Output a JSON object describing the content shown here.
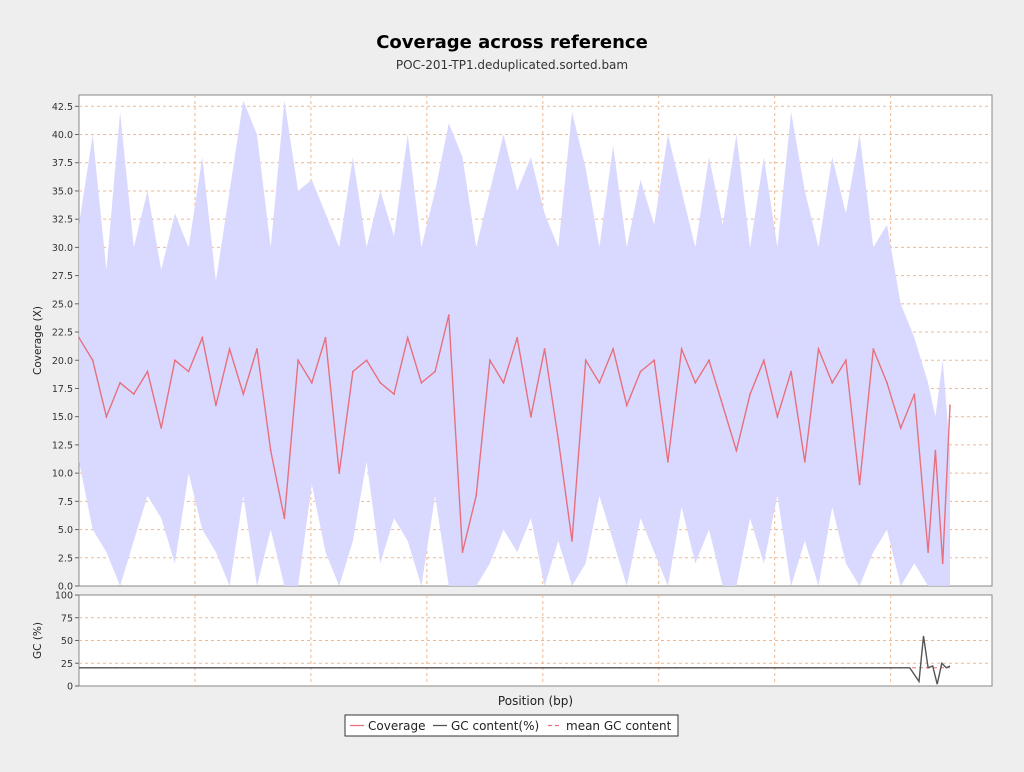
{
  "chart_data": [
    {
      "type": "line",
      "title": "Coverage across reference",
      "subtitle": "POC-201-TP1.deduplicated.sorted.bam",
      "xlabel": "",
      "ylabel": "Coverage (X)",
      "ylim": [
        0,
        43.5
      ],
      "yticks": [
        0.0,
        2.5,
        5.0,
        7.5,
        10.0,
        12.5,
        15.0,
        17.5,
        20.0,
        22.5,
        25.0,
        27.5,
        30.0,
        32.5,
        35.0,
        37.5,
        40.0,
        42.5
      ],
      "ytick_labels": [
        "0.0",
        "2.5",
        "5.0",
        "7.5",
        "10.0",
        "12.5",
        "15.0",
        "17.5",
        "20.0",
        "22.5",
        "25.0",
        "27.5",
        "30.0",
        "32.5",
        "35.0",
        "37.5",
        "40.0",
        "42.5"
      ],
      "xlim": [
        0,
        100
      ],
      "grid": true,
      "band_color": "#d7d7ff",
      "line_color": "#e8707e",
      "series": [
        {
          "name": "Coverage",
          "x": [
            0,
            1.5,
            3,
            4.5,
            6,
            7.5,
            9,
            10.5,
            12,
            13.5,
            15,
            16.5,
            18,
            19.5,
            21,
            22.5,
            24,
            25.5,
            27,
            28.5,
            30,
            31.5,
            33,
            34.5,
            36,
            37.5,
            39,
            40.5,
            42,
            43.5,
            45,
            46.5,
            48,
            49.5,
            51,
            52.5,
            54,
            55.5,
            57,
            58.5,
            60,
            61.5,
            63,
            64.5,
            66,
            67.5,
            69,
            70.5,
            72,
            73.5,
            75,
            76.5,
            78,
            79.5,
            81,
            82.5,
            84,
            85.5,
            87,
            88.5,
            90,
            91.5,
            93,
            93.8,
            94.6,
            95.4
          ],
          "y": [
            22,
            20,
            15,
            18,
            17,
            19,
            14,
            20,
            19,
            22,
            16,
            21,
            17,
            21,
            12,
            6,
            20,
            18,
            22,
            10,
            19,
            20,
            18,
            17,
            22,
            18,
            19,
            24,
            3,
            8,
            20,
            18,
            22,
            15,
            21,
            13,
            4,
            20,
            18,
            21,
            16,
            19,
            20,
            11,
            21,
            18,
            20,
            16,
            12,
            17,
            20,
            15,
            19,
            11,
            21,
            18,
            20,
            9,
            21,
            18,
            14,
            17,
            3,
            12,
            2,
            16
          ],
          "band_upper": [
            32,
            40,
            28,
            42,
            30,
            35,
            28,
            33,
            30,
            38,
            27,
            35,
            43,
            40,
            30,
            43,
            35,
            36,
            33,
            30,
            38,
            30,
            35,
            31,
            40,
            30,
            35,
            41,
            38,
            30,
            35,
            40,
            35,
            38,
            33,
            30,
            42,
            37,
            30,
            39,
            30,
            36,
            32,
            40,
            35,
            30,
            38,
            32,
            40,
            30,
            38,
            30,
            42,
            35,
            30,
            38,
            33,
            40,
            30,
            32,
            25,
            22,
            18,
            15,
            20,
            12
          ],
          "band_lower": [
            11,
            5,
            3,
            0,
            4,
            8,
            6,
            2,
            10,
            5,
            3,
            0,
            8,
            0,
            5,
            0,
            0,
            9,
            3,
            0,
            4,
            11,
            2,
            6,
            4,
            0,
            8,
            0,
            0,
            0,
            2,
            5,
            3,
            6,
            0,
            4,
            0,
            2,
            8,
            4,
            0,
            6,
            3,
            0,
            7,
            2,
            5,
            0,
            0,
            6,
            2,
            8,
            0,
            4,
            0,
            7,
            2,
            0,
            3,
            5,
            0,
            2,
            0,
            0,
            0,
            0
          ]
        }
      ]
    },
    {
      "type": "line",
      "ylabel": "GC (%)",
      "xlabel": "Position (bp)",
      "ylim": [
        0,
        100
      ],
      "yticks": [
        0,
        25,
        50,
        75,
        100
      ],
      "ytick_labels": [
        "0",
        "25",
        "50",
        "75",
        "100"
      ],
      "xlim": [
        0,
        100
      ],
      "grid": true,
      "mean_gc": 20,
      "series": [
        {
          "name": "GC content(%)",
          "color": "#555555",
          "x": [
            0,
            5,
            10,
            15,
            20,
            25,
            30,
            35,
            40,
            45,
            50,
            55,
            60,
            65,
            70,
            75,
            80,
            85,
            88,
            91,
            92,
            92.5,
            93,
            93.5,
            94,
            94.5,
            95,
            95.4
          ],
          "y": [
            20,
            20,
            20,
            20,
            20,
            20,
            20,
            20,
            20,
            20,
            20,
            20,
            20,
            20,
            20,
            20,
            20,
            20,
            20,
            20,
            5,
            55,
            20,
            22,
            2,
            25,
            20,
            22
          ]
        },
        {
          "name": "mean GC content",
          "color": "#e8707e",
          "dashed": true,
          "value": 20
        }
      ]
    }
  ],
  "legend": {
    "placement": "bottom",
    "items": [
      {
        "label": "Coverage",
        "color": "#e8707e",
        "style": "solid"
      },
      {
        "label": "GC content(%)",
        "color": "#555555",
        "style": "solid"
      },
      {
        "label": "mean GC content",
        "color": "#e8707e",
        "style": "dashed"
      }
    ]
  }
}
